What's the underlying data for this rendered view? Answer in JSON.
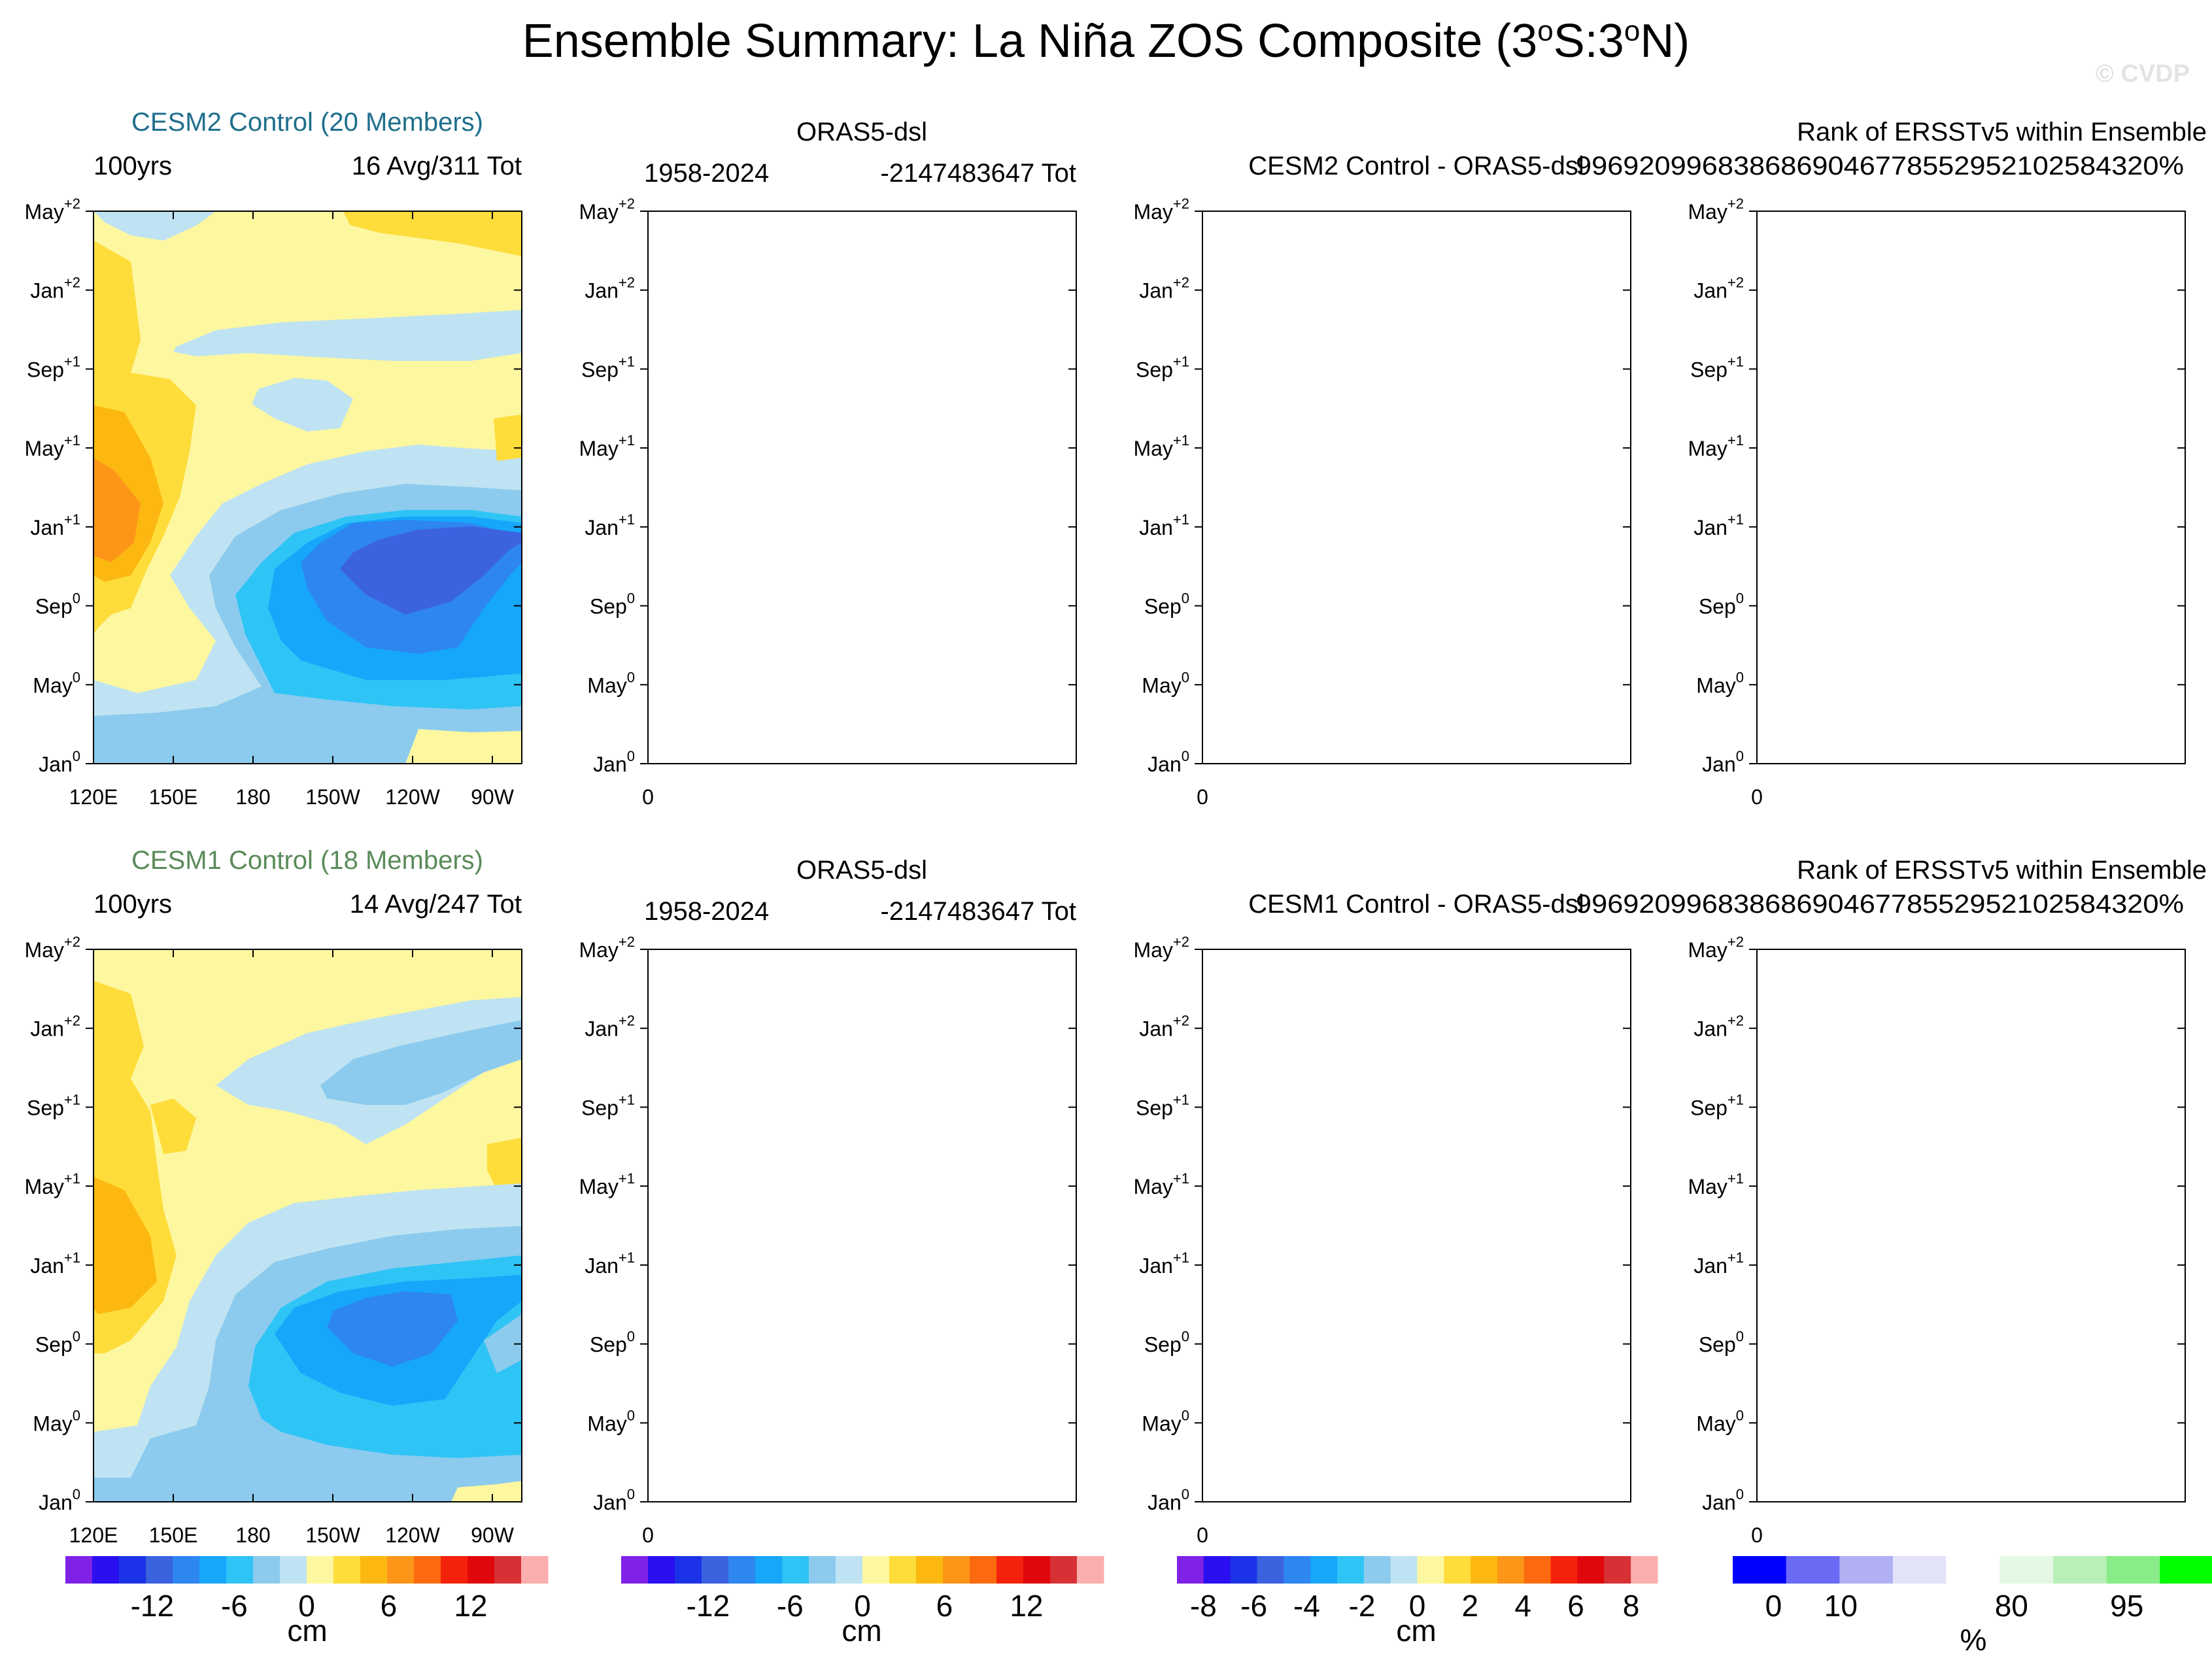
{
  "title": "Ensemble Summary: La Niña ZOS Composite (3°S:3°N)",
  "title_parts": {
    "pre": "Ensemble Summary: La Niña ZOS Composite (3",
    "sup1": "o",
    "mid": "S:3",
    "sup2": "o",
    "post": "N)"
  },
  "watermark": "© CVDP",
  "colors": {
    "cesm2": "#1f6e8c",
    "cesm1": "#5a8a5a",
    "zos_scale": [
      "#7f22e6",
      "#2a0ff0",
      "#1c32e8",
      "#3b63e0",
      "#2e86f0",
      "#16a6fa",
      "#2ec4f6",
      "#8ccbee",
      "#bfe3f2",
      "#fdf7a0",
      "#fedc3a",
      "#fcb810",
      "#fd9618",
      "#fb6a0e",
      "#f4220c",
      "#e0080c",
      "#d63236",
      "#fbaeae"
    ],
    "rank_scale": [
      "#0000ff",
      "#6a6af5",
      "#b0b0f2",
      "#e2e2f8",
      "#ffffff",
      "#e4f8e4",
      "#b8f0b8",
      "#88ec88",
      "#00ff00"
    ]
  },
  "y_ticks": [
    {
      "m": "May",
      "s": "+2"
    },
    {
      "m": "Jan",
      "s": "+2"
    },
    {
      "m": "Sep",
      "s": "+1"
    },
    {
      "m": "May",
      "s": "+1"
    },
    {
      "m": "Jan",
      "s": "+1"
    },
    {
      "m": "Sep",
      "s": "0"
    },
    {
      "m": "May",
      "s": "0"
    },
    {
      "m": "Jan",
      "s": "0"
    }
  ],
  "x_ticks_model": [
    "120E",
    "150E",
    "180",
    "150W",
    "120W",
    "90W"
  ],
  "x_tick_obs": "0",
  "rows": [
    {
      "model": "CESM2 Control (20 Members)",
      "model_period": "100yrs",
      "model_count": "16 Avg/311 Tot",
      "obs_title": "ORAS5-dsl",
      "obs_period": "1958-2024",
      "obs_count": "-2147483647 Tot",
      "diff_title": "CESM2 Control - ORAS5-dsl",
      "rank_title": "Rank of ERSSTv5 within Ensemble",
      "rank_value": "99692099683868690467785529521025843​20%"
    },
    {
      "model": "CESM1 Control (18 Members)",
      "model_period": "100yrs",
      "model_count": "14 Avg/247 Tot",
      "obs_title": "ORAS5-dsl",
      "obs_period": "1958-2024",
      "obs_count": "-2147483647 Tot",
      "diff_title": "CESM1 Control - ORAS5-dsl",
      "rank_title": "Rank of ERSSTv5 within Ensemble",
      "rank_value": "99692099683868690467785529521025843​20%"
    }
  ],
  "colorbars": [
    {
      "labels": [
        "-12",
        "-6",
        "0",
        "6",
        "12"
      ],
      "unit": "cm"
    },
    {
      "labels": [
        "-12",
        "-6",
        "0",
        "6",
        "12"
      ],
      "unit": "cm"
    },
    {
      "labels": [
        "-8",
        "-6",
        "-4",
        "-2",
        "0",
        "2",
        "4",
        "6",
        "8"
      ],
      "unit": "cm"
    },
    {
      "labels": [
        "0",
        "10",
        "80",
        "95"
      ],
      "unit": "%"
    }
  ],
  "chart_data": {
    "type": "heatmap",
    "variable": "ZOS composite (cm)",
    "lat_band": "3°S:3°N",
    "x_axis": [
      "120E",
      "150E",
      "180",
      "150W",
      "120W",
      "90W"
    ],
    "y_axis": [
      "Jan0",
      "May0",
      "Sep0",
      "Jan+1",
      "May+1",
      "Sep+1",
      "Jan+2",
      "May+2"
    ],
    "zos_contour_levels": [
      -16,
      -14,
      -12,
      -10,
      -8,
      -6,
      -4,
      -2,
      0,
      2,
      4,
      6,
      8,
      10,
      12,
      14,
      16
    ],
    "diff_contour_levels": [
      -8,
      -7,
      -6,
      -5,
      -4,
      -3,
      -2,
      -1,
      0,
      1,
      2,
      3,
      4,
      5,
      6,
      7,
      8
    ],
    "rank_levels": [
      0,
      5,
      10,
      20,
      80,
      90,
      95,
      97.5,
      100
    ],
    "panels": [
      {
        "name": "CESM2 Control",
        "min_value_approx": -10,
        "max_value_approx": 6
      },
      {
        "name": "CESM1 Control",
        "min_value_approx": -10,
        "max_value_approx": 4
      }
    ]
  }
}
